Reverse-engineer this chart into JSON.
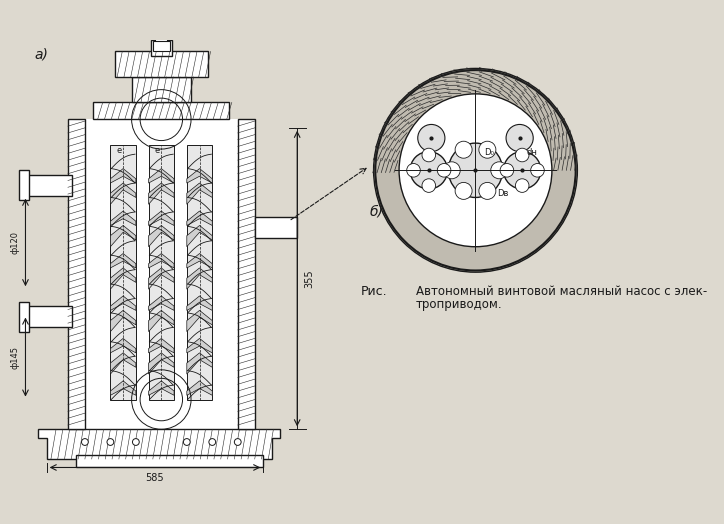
{
  "bg_color": "#d8d4cc",
  "title_label": "Рис.",
  "caption_line1": "Автономный винтовой масляный насос с элек-",
  "caption_line2": "троприводом.",
  "label_a": "а)",
  "label_b": "б)",
  "dim_585": "585",
  "dim_355": "355",
  "dim_phi120": "ф120",
  "dim_phi145": "ф145",
  "line_color": "#1a1a1a",
  "hatch_color": "#2a2a2a",
  "paper_color": "#ddd9cf"
}
